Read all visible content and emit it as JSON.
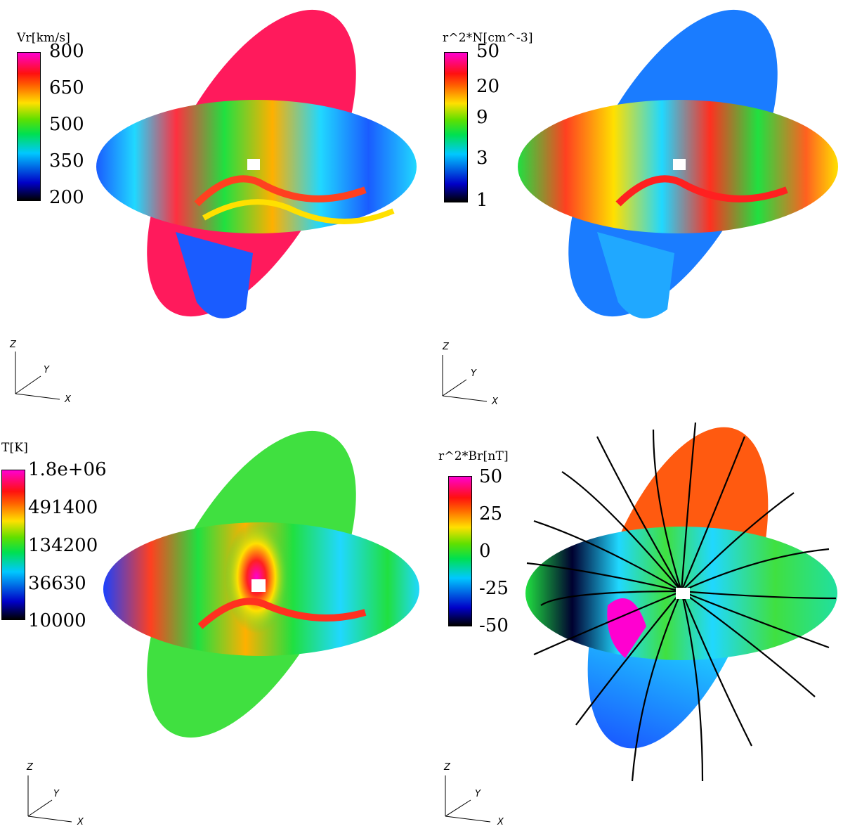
{
  "panels": [
    {
      "colorbar": {
        "title": "Vr[km/s]",
        "ticks": [
          "800",
          "650",
          "500",
          "350",
          "200"
        ]
      },
      "axes": {
        "x": "X",
        "y": "Y",
        "z": "Z"
      }
    },
    {
      "colorbar": {
        "title": "r^2*N[cm^-3]",
        "ticks": [
          "50",
          "20",
          "9",
          "3",
          "1"
        ]
      },
      "axes": {
        "x": "X",
        "y": "Y",
        "z": "Z"
      }
    },
    {
      "colorbar": {
        "title": "T[K]",
        "ticks": [
          "1.8e+06",
          "491400",
          "134200",
          "36630",
          "10000"
        ]
      },
      "axes": {
        "x": "X",
        "y": "Y",
        "z": "Z"
      }
    },
    {
      "colorbar": {
        "title": "r^2*Br[nT]",
        "ticks": [
          "50",
          "25",
          "0",
          "-25",
          "-50"
        ]
      },
      "axes": {
        "x": "X",
        "y": "Y",
        "z": "Z"
      }
    }
  ],
  "colors": {
    "high": "#ff1060",
    "mid": "#20e040",
    "low": "#1a5cff",
    "orange": "#ff5a10",
    "cyan": "#20d8ff"
  }
}
